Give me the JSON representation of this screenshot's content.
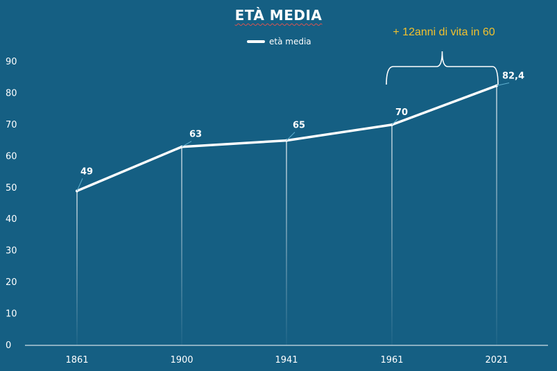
{
  "chart_data": {
    "type": "line",
    "title": "ETÀ MEDIA",
    "categories": [
      "1861",
      "1900",
      "1941",
      "1961",
      "2021"
    ],
    "series": [
      {
        "name": "età media",
        "values": [
          49,
          63,
          65,
          70,
          82.4
        ]
      }
    ],
    "data_labels": [
      "49",
      "63",
      "65",
      "70",
      "82,4"
    ],
    "y_ticks": [
      "0",
      "10",
      "20",
      "30",
      "40",
      "50",
      "60",
      "70",
      "80",
      "90"
    ],
    "ylim": [
      0,
      90
    ],
    "annotation": "+ 12anni di vita in 60",
    "legend_position": "top-center",
    "drop_lines": true,
    "colors": {
      "background": "#155f83",
      "line": "#ffffff",
      "annotation": "#f2c12e"
    }
  }
}
